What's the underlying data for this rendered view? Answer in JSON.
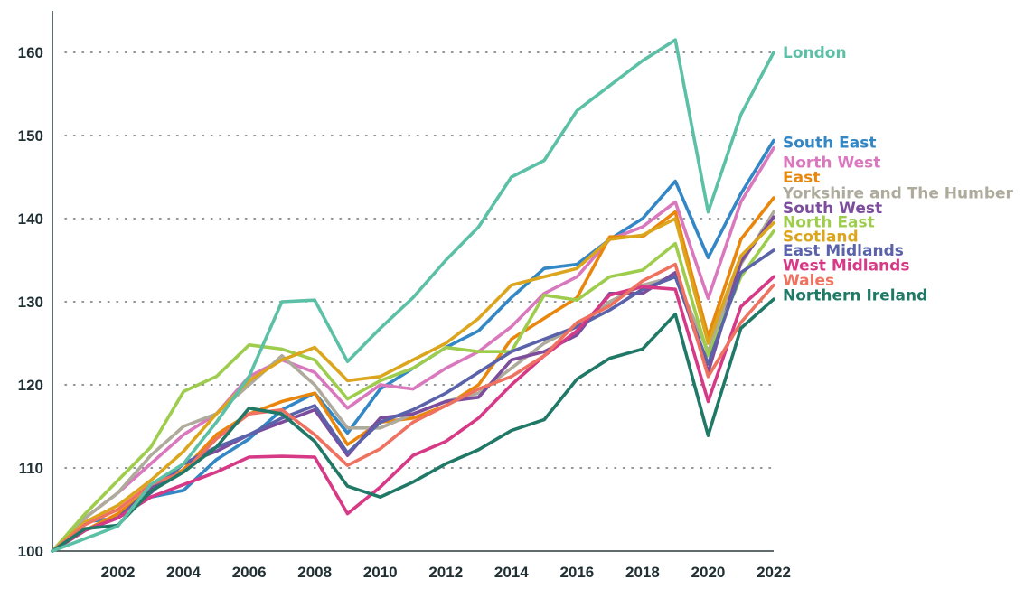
{
  "chart_data": {
    "type": "line",
    "title": "",
    "xlabel": "",
    "ylabel": "",
    "ylim": [
      100,
      165
    ],
    "yticks": [
      100,
      110,
      120,
      130,
      140,
      150,
      160
    ],
    "xlim": [
      2000,
      2022
    ],
    "xticks": [
      2002,
      2004,
      2006,
      2008,
      2010,
      2012,
      2014,
      2016,
      2018,
      2020,
      2022
    ],
    "grid": "horizontal dotted",
    "legend": "labels at line ends (right)",
    "x": [
      2000,
      2001,
      2002,
      2003,
      2004,
      2005,
      2006,
      2007,
      2008,
      2009,
      2010,
      2011,
      2012,
      2013,
      2014,
      2015,
      2016,
      2017,
      2018,
      2019,
      2020,
      2021,
      2022
    ],
    "series": [
      {
        "name": "London",
        "color": "#5cc0a6",
        "label_y": 160,
        "values": [
          100,
          101.5,
          103,
          108,
          110.5,
          115.5,
          121,
          130,
          130.2,
          122.8,
          126.8,
          130.5,
          135,
          139,
          145,
          147,
          153,
          156,
          159,
          161.5,
          140.8,
          152.5,
          160
        ]
      },
      {
        "name": "South East",
        "color": "#3287c4",
        "label_y": 149.2,
        "values": [
          100,
          103.5,
          104,
          106.5,
          107.3,
          111,
          113.5,
          117,
          119,
          114.2,
          119.5,
          122,
          124.5,
          126.5,
          130.5,
          134,
          134.5,
          137.5,
          140,
          144.5,
          135.3,
          143,
          149.4
        ]
      },
      {
        "name": "North West",
        "color": "#d978bd",
        "label_y": 146.8,
        "values": [
          100,
          104,
          107,
          110.5,
          114,
          116.5,
          121,
          123,
          121.5,
          117.2,
          120,
          119.5,
          122,
          124,
          127,
          131,
          133,
          137.5,
          139,
          142,
          130.4,
          142,
          148.5
        ]
      },
      {
        "name": "East",
        "color": "#e8870c",
        "label_y": 145,
        "values": [
          100,
          102.5,
          104.5,
          107.5,
          109.8,
          114,
          116.5,
          118,
          119,
          112.8,
          115.5,
          116,
          117.5,
          120,
          125.5,
          128,
          130.5,
          137.8,
          137.8,
          140.8,
          125.8,
          137.5,
          142.5
        ]
      },
      {
        "name": "Yorkshire and The Humber",
        "color": "#aeab9c",
        "label_y": 143.1,
        "values": [
          100,
          104,
          107,
          111.5,
          115,
          116.5,
          120,
          123.5,
          120,
          114.8,
          114.8,
          116.5,
          118,
          119,
          122,
          125,
          127,
          130,
          132,
          133,
          124,
          134.5,
          140.8
        ]
      },
      {
        "name": "South West",
        "color": "#7c4d9d",
        "label_y": 141.3,
        "values": [
          100,
          102.5,
          104,
          107.5,
          110.5,
          112,
          114,
          115.5,
          117,
          111.5,
          116,
          116.5,
          118,
          118.5,
          123,
          124,
          126,
          131,
          131,
          133.5,
          121.5,
          134.8,
          140.2
        ]
      },
      {
        "name": "North East",
        "color": "#9ecd4e",
        "label_y": 139.6,
        "values": [
          100,
          104.5,
          108.5,
          112.5,
          119.2,
          121,
          124.8,
          124.3,
          123,
          118.3,
          120.5,
          122,
          124.5,
          124,
          124,
          130.8,
          130.2,
          133,
          133.8,
          137,
          123.5,
          133,
          138.5
        ]
      },
      {
        "name": "Scotland",
        "color": "#dca51e",
        "label_y": 137.9,
        "values": [
          100,
          103.5,
          105.5,
          108.5,
          112,
          116.5,
          120.5,
          123,
          124.5,
          120.5,
          121,
          123,
          125,
          128,
          132,
          133,
          134,
          137.5,
          138,
          140,
          125,
          135.5,
          139.5
        ]
      },
      {
        "name": "East Midlands",
        "color": "#5a62aa",
        "label_y": 136.2,
        "values": [
          100,
          102.5,
          104,
          107,
          110.5,
          112.5,
          114,
          116,
          117.5,
          111.8,
          115.5,
          117,
          119,
          121.5,
          124,
          125.5,
          127,
          129,
          131.5,
          133,
          122.5,
          133.5,
          136.2
        ]
      },
      {
        "name": "West Midlands",
        "color": "#d63a86",
        "label_y": 134.4,
        "values": [
          100,
          102.5,
          104,
          106.5,
          108,
          109.5,
          111.3,
          111.4,
          111.3,
          104.5,
          107.7,
          111.5,
          113.2,
          116,
          120,
          123.5,
          126.5,
          130.8,
          131.8,
          131.5,
          118,
          129.4,
          133
        ]
      },
      {
        "name": "Wales",
        "color": "#ef7261",
        "label_y": 132.6,
        "values": [
          100,
          103.2,
          105,
          108,
          109.5,
          113.5,
          116.5,
          117,
          114,
          110.3,
          112.3,
          115.5,
          117.5,
          119.5,
          121,
          123.5,
          127.5,
          129.5,
          132.5,
          134.5,
          121,
          127.5,
          132
        ]
      },
      {
        "name": "Northern Ireland",
        "color": "#207866",
        "label_y": 130.8,
        "values": [
          100,
          102.7,
          103.1,
          107.2,
          109.5,
          112.5,
          117.2,
          116.5,
          113.2,
          107.8,
          106.5,
          108.3,
          110.5,
          112.2,
          114.5,
          115.8,
          120.7,
          123.2,
          124.3,
          128.5,
          113.9,
          126.8,
          130.3
        ]
      }
    ]
  }
}
